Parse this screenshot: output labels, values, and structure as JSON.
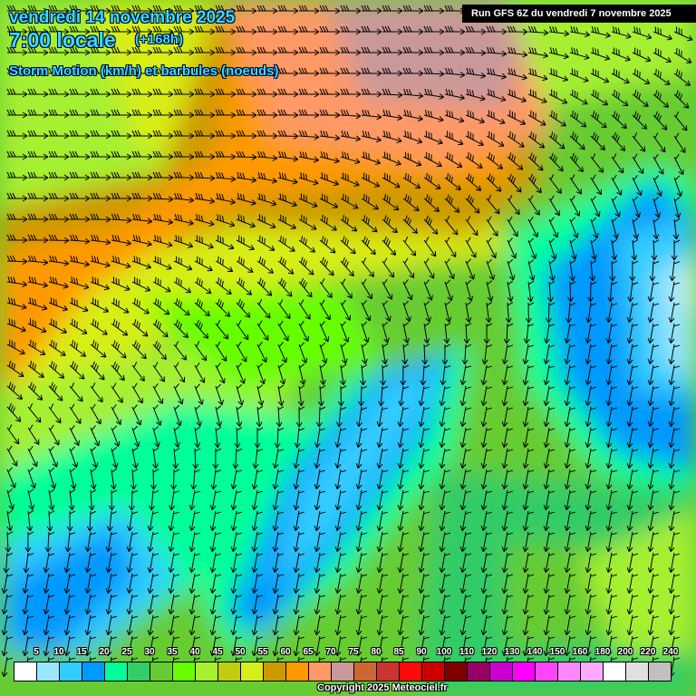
{
  "header": {
    "date": "vendredi 14 novembre 2025",
    "time": "7:00 locale",
    "lead": "(+168h)",
    "parameter": "Storm Motion (km/h) et barbules (noeuds)",
    "run": "Run GFS 6Z du vendredi 7 novembre 2025"
  },
  "legend": {
    "labels": [
      "5",
      "10",
      "15",
      "20",
      "25",
      "30",
      "35",
      "40",
      "45",
      "50",
      "55",
      "60",
      "65",
      "70",
      "75",
      "80",
      "85",
      "90",
      "100",
      "110",
      "120",
      "130",
      "140",
      "150",
      "160",
      "180",
      "200",
      "220",
      "240"
    ],
    "colors": [
      "#ffffff",
      "#99e6ff",
      "#33ccff",
      "#0099ff",
      "#00ff99",
      "#33cc66",
      "#66cc33",
      "#66ff00",
      "#a6f030",
      "#bfcc10",
      "#d8ee18",
      "#cc9900",
      "#ff9900",
      "#ff9966",
      "#c99999",
      "#cc6633",
      "#cc3333",
      "#ff0a0a",
      "#cc0000",
      "#800000",
      "#990066",
      "#cc00cc",
      "#ff00ff",
      "#ff44ff",
      "#ff88ff",
      "#ffaaff",
      "#ffffff",
      "#e0e0e0",
      "#c0c0c0"
    ]
  },
  "footer": {
    "copyright": "Copyright 2025 Meteociel.fr"
  }
}
